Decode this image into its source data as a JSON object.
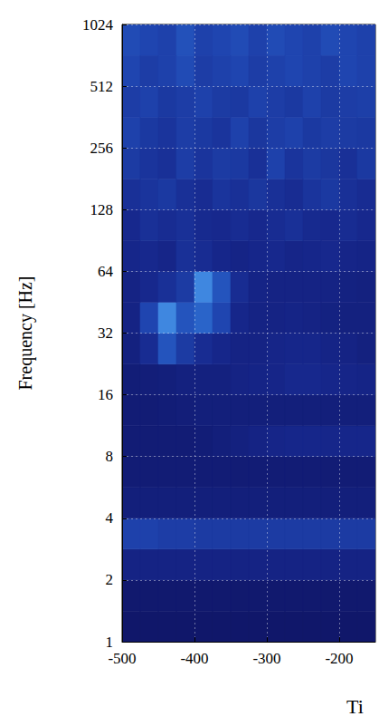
{
  "chart_data": {
    "type": "heatmap",
    "y_label": "Frequency [Hz]",
    "x_label": "Ti",
    "xlim": [
      -500,
      -150
    ],
    "xticks": [
      -500,
      -400,
      -300,
      -200
    ],
    "ylim": [
      1,
      1024
    ],
    "yticks": [
      1,
      2,
      4,
      8,
      16,
      32,
      64,
      128,
      256,
      512,
      1024
    ],
    "log": "y",
    "grid": true,
    "x_edges": [
      -500,
      -475,
      -450,
      -425,
      -400,
      -375,
      -350,
      -325,
      -300,
      -275,
      -250,
      -225,
      -200,
      -175,
      -150
    ],
    "y_edges": [
      1,
      1.41,
      2,
      2.83,
      4,
      5.66,
      8,
      11.3,
      16,
      22.6,
      32,
      45.3,
      64,
      90.5,
      128,
      181,
      256,
      362,
      512,
      724,
      1024
    ],
    "color_range": [
      1,
      7
    ],
    "cells": [
      [
        1,
        1,
        1,
        1,
        1,
        1,
        1,
        1,
        1,
        1,
        1,
        1,
        1,
        1
      ],
      [
        1.2,
        1.2,
        1.2,
        1.2,
        1.2,
        1.2,
        1.2,
        1.2,
        1.2,
        1.2,
        1.2,
        1.2,
        1.2,
        1.2
      ],
      [
        2.2,
        2.2,
        2.2,
        2.2,
        2.2,
        2.2,
        2.2,
        2.2,
        2.2,
        2.2,
        2.2,
        2.2,
        2.2,
        2.2
      ],
      [
        3.8,
        3.8,
        3.6,
        3.6,
        3.5,
        3.5,
        3.5,
        3.5,
        3.5,
        3.5,
        3.5,
        3.5,
        3.5,
        3.5
      ],
      [
        1.8,
        1.8,
        1.8,
        1.8,
        1.8,
        1.8,
        1.8,
        1.8,
        1.8,
        1.8,
        1.8,
        1.8,
        1.8,
        1.8
      ],
      [
        1.5,
        1.5,
        1.5,
        1.5,
        1.5,
        1.5,
        1.5,
        1.5,
        1.5,
        1.5,
        1.5,
        1.5,
        1.5,
        1.5
      ],
      [
        1.5,
        1.5,
        1.5,
        1.5,
        1.6,
        1.8,
        2,
        2.2,
        2.4,
        2.5,
        2.5,
        2.5,
        2.5,
        2.5
      ],
      [
        1.5,
        1.5,
        1.6,
        1.7,
        1.8,
        1.8,
        1.8,
        1.8,
        1.8,
        1.8,
        1.8,
        1.8,
        1.8,
        1.8
      ],
      [
        1.6,
        1.7,
        1.8,
        2,
        2,
        2,
        2.2,
        2.3,
        2.4,
        2.6,
        2.6,
        2.5,
        2.4,
        2.3
      ],
      [
        2,
        2.8,
        4.5,
        3.5,
        2.8,
        2.5,
        2.2,
        2.2,
        2.4,
        2.5,
        2.5,
        2.3,
        2.2,
        2
      ],
      [
        2.2,
        4,
        6,
        4.5,
        5,
        4,
        2.5,
        2.2,
        2.2,
        2.3,
        2.2,
        2.1,
        2,
        2
      ],
      [
        2.2,
        2.6,
        3,
        3.5,
        6,
        4.5,
        2.8,
        2.3,
        2.2,
        2.2,
        2.2,
        2.2,
        2.1,
        2
      ],
      [
        2.5,
        2.6,
        2.4,
        3,
        2.8,
        2.5,
        2.3,
        2.5,
        2.6,
        2.4,
        2.5,
        2.6,
        2.4,
        2.3
      ],
      [
        2.6,
        3,
        2.8,
        3,
        2.7,
        2.6,
        2.8,
        2.6,
        2.8,
        3,
        2.7,
        2.6,
        2.8,
        2.6
      ],
      [
        3,
        3.2,
        3.4,
        3,
        2.8,
        3.2,
        3,
        3.3,
        3,
        2.8,
        3.2,
        3.4,
        3,
        2.8
      ],
      [
        3.5,
        3.2,
        3,
        3.6,
        3.2,
        3.5,
        3.4,
        3,
        3.8,
        3.2,
        3.5,
        3.3,
        3,
        3.4
      ],
      [
        3.8,
        3.4,
        3.2,
        3.6,
        3.4,
        3.2,
        3.8,
        3.3,
        3.6,
        3.8,
        3.4,
        3.6,
        3.5,
        3.4
      ],
      [
        3.6,
        3.8,
        3.4,
        3.6,
        3.8,
        3.5,
        3.4,
        3.8,
        3.6,
        3.4,
        3.8,
        3.5,
        3.6,
        3.7
      ],
      [
        4,
        3.6,
        3.8,
        4.2,
        3.6,
        3.8,
        4,
        3.6,
        3.8,
        4,
        3.8,
        3.6,
        4,
        3.8
      ],
      [
        4.2,
        4,
        3.8,
        4.4,
        3.8,
        4,
        4.2,
        3.8,
        4.2,
        4,
        3.8,
        4.2,
        4,
        3.8
      ]
    ]
  }
}
